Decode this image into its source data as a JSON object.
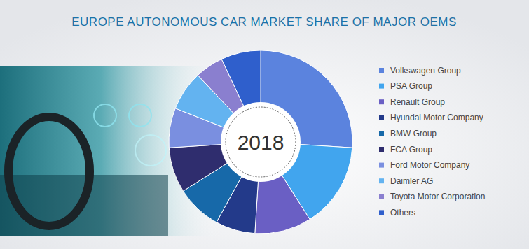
{
  "chart_data": {
    "type": "pie",
    "title": "EUROPE AUTONOMOUS CAR MARKET SHARE OF MAJOR OEMS",
    "annotations": [
      "2018"
    ],
    "categories": [
      "Volkswagen Group",
      "PSA Group",
      "Renault Group",
      "Hyundai Motor Company",
      "BMW Group",
      "FCA Group",
      "Ford Motor Company",
      "Daimler AG",
      "Toyota Motor Corporation",
      "Others"
    ],
    "values": [
      26,
      15,
      10,
      7,
      8,
      8,
      7,
      7,
      5,
      7
    ],
    "colors": [
      "#5b83de",
      "#41a5ee",
      "#6a5fc4",
      "#233a8a",
      "#1769a9",
      "#2f2d6e",
      "#7a8fe0",
      "#63b3f0",
      "#8a7fcf",
      "#2f5fcc"
    ],
    "legend": "right"
  }
}
